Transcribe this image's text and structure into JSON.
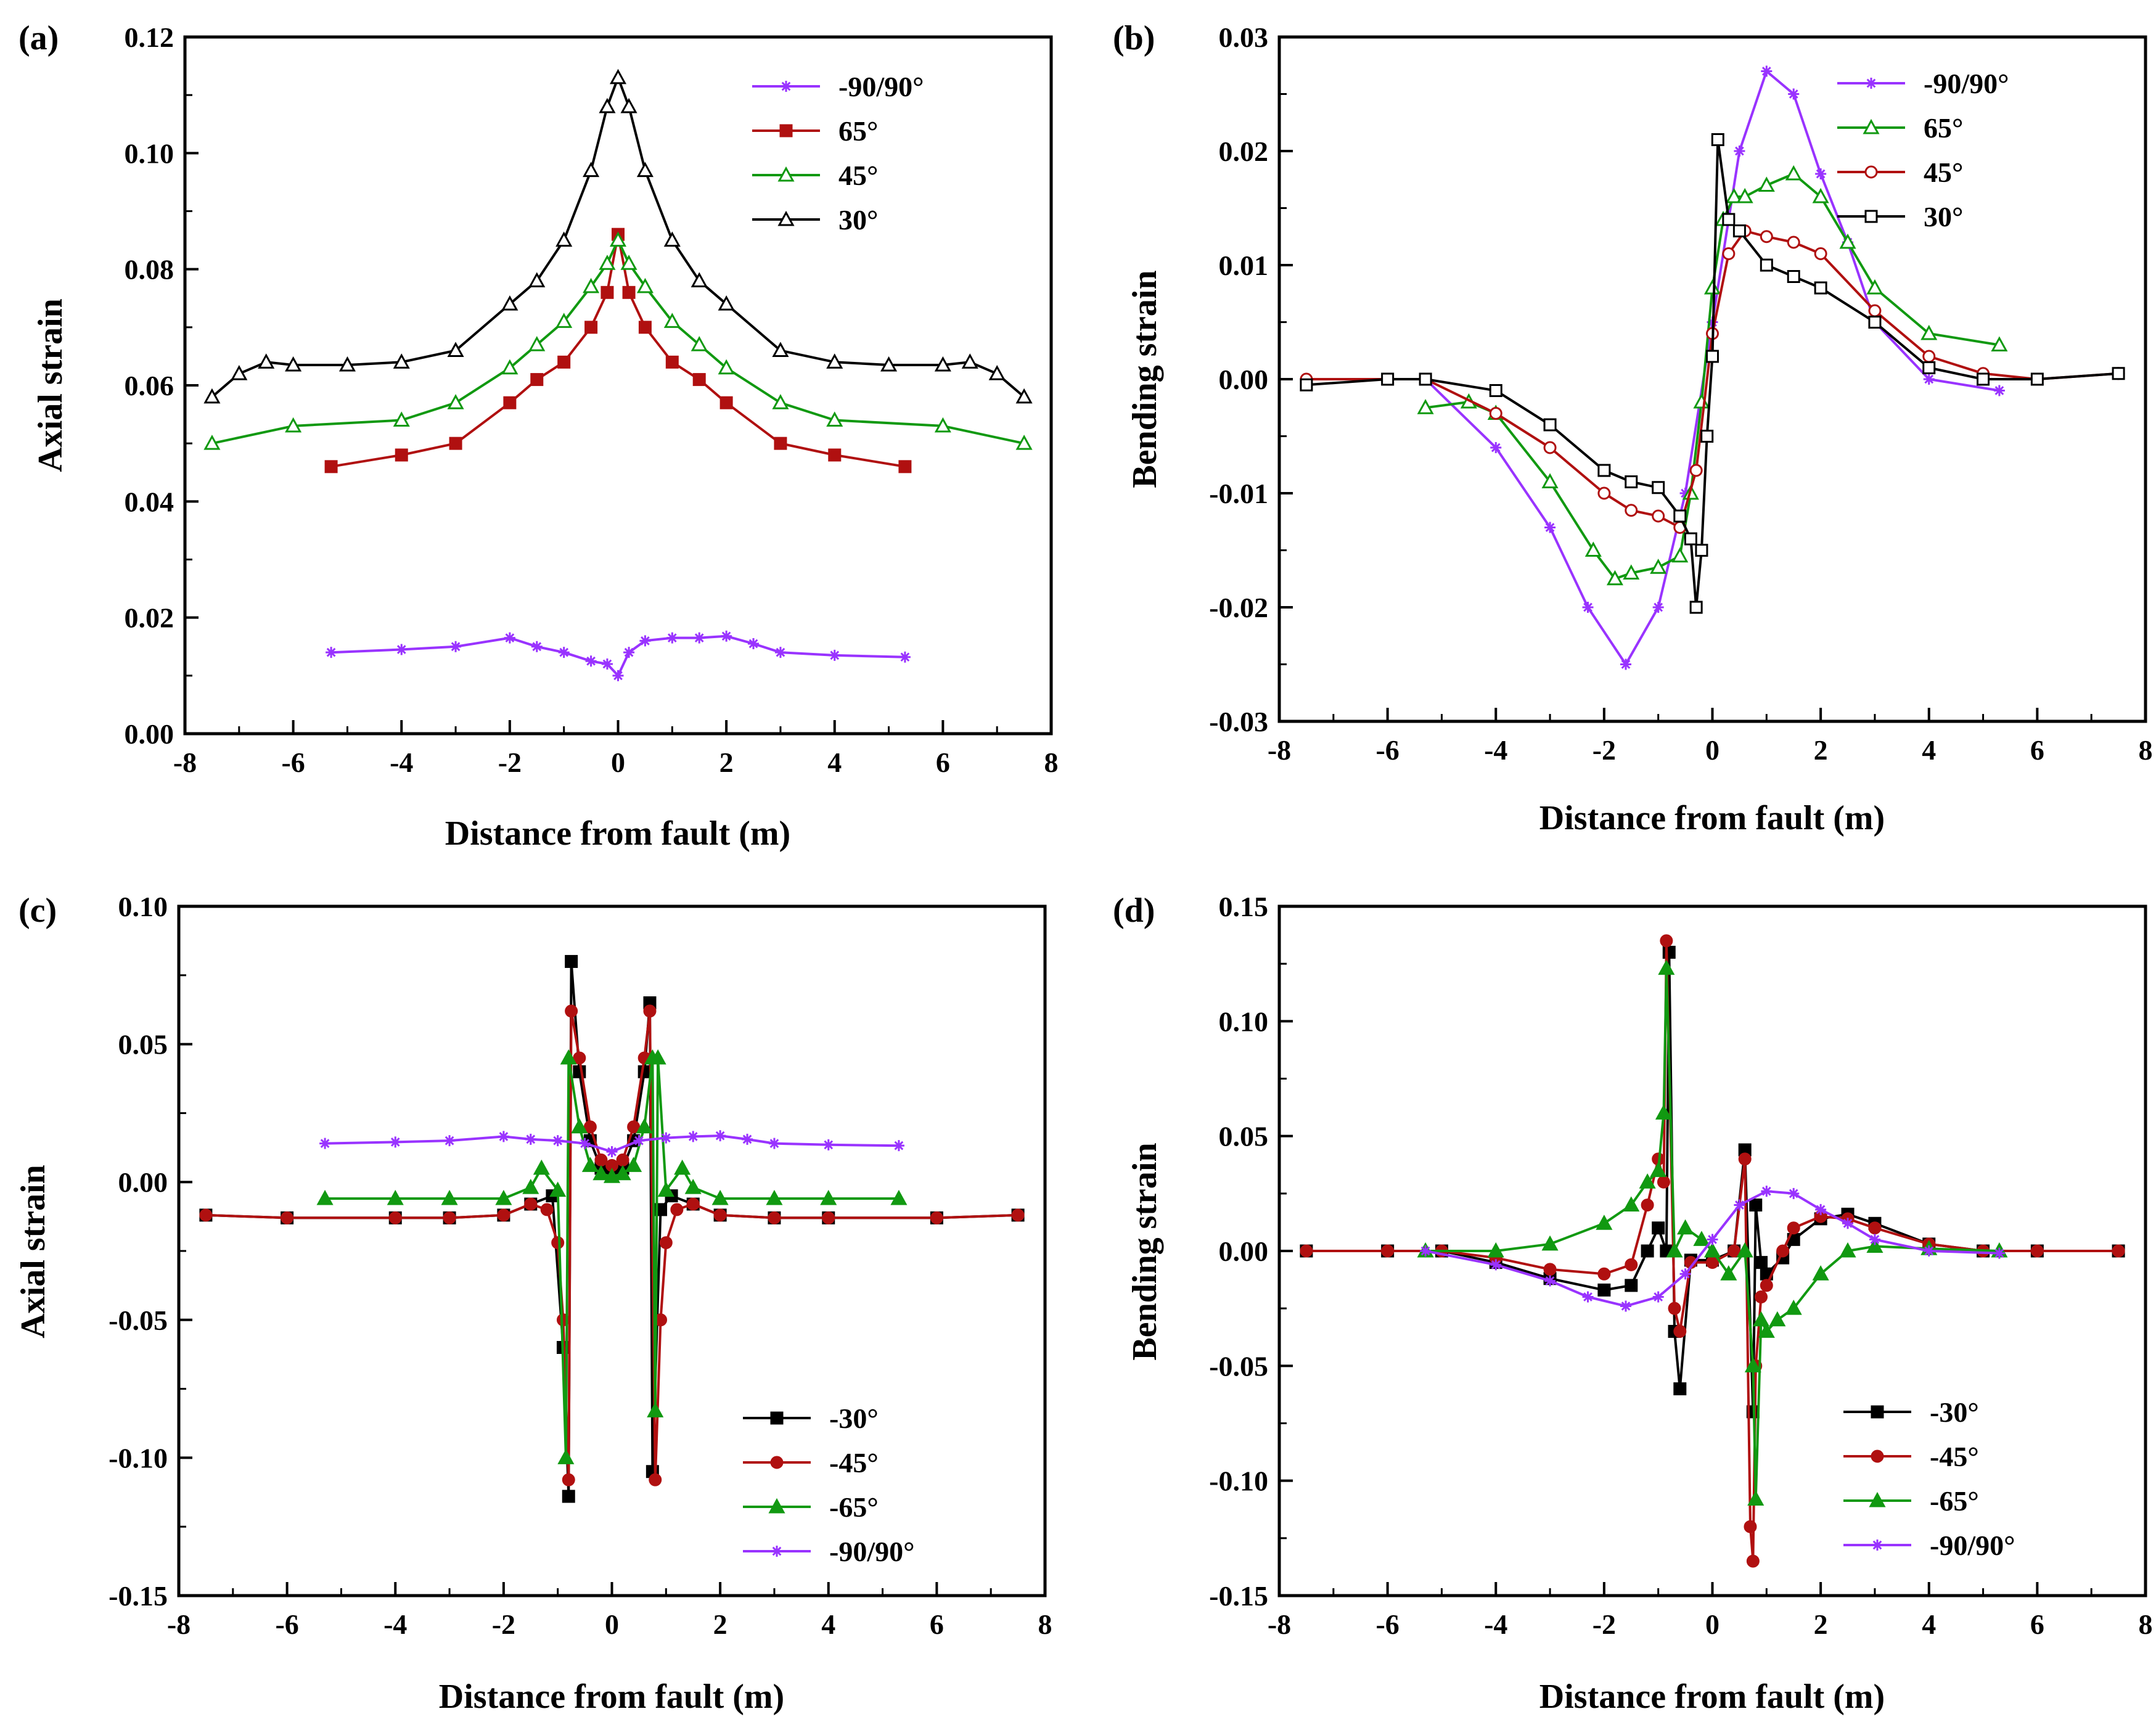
{
  "figure": {
    "panels": [
      "a",
      "b",
      "c",
      "d"
    ]
  },
  "colors": {
    "purple": "#9933ff",
    "red": "#b01010",
    "green": "#119911",
    "black": "#000000"
  },
  "chart_data": [
    {
      "id": "a",
      "panel_label": "(a)",
      "type": "line",
      "xlabel": "Distance from fault (m)",
      "ylabel": "Axial strain",
      "xlim": [
        -8,
        8
      ],
      "ylim": [
        0,
        0.12
      ],
      "xticks": [
        -8,
        -6,
        -4,
        -2,
        0,
        2,
        4,
        6,
        8
      ],
      "xtick_labels": [
        "-8",
        "-6",
        "-4",
        "-2",
        "0",
        "2",
        "4",
        "6",
        "8"
      ],
      "yticks": [
        0,
        0.02,
        0.04,
        0.06,
        0.08,
        0.1,
        0.12
      ],
      "ytick_labels": [
        "0.00",
        "0.02",
        "0.04",
        "0.06",
        "0.08",
        "0.10",
        "0.12"
      ],
      "legend_position": "top-right",
      "series": [
        {
          "name": "-90/90°",
          "color": "#9933ff",
          "marker": "star",
          "x": [
            -5.3,
            -4,
            -3,
            -2,
            -1.5,
            -1,
            -0.5,
            -0.2,
            0,
            0.2,
            0.5,
            1,
            1.5,
            2,
            2.5,
            3,
            4,
            5.3
          ],
          "y": [
            0.014,
            0.0145,
            0.015,
            0.0165,
            0.015,
            0.014,
            0.0125,
            0.012,
            0.01,
            0.014,
            0.016,
            0.0165,
            0.0165,
            0.0168,
            0.0155,
            0.014,
            0.0135,
            0.0132
          ]
        },
        {
          "name": "65°",
          "color": "#b01010",
          "marker": "square",
          "x": [
            -5.3,
            -4,
            -3,
            -2,
            -1.5,
            -1,
            -0.5,
            -0.2,
            0,
            0.2,
            0.5,
            1,
            1.5,
            2,
            3,
            4,
            5.3
          ],
          "y": [
            0.046,
            0.048,
            0.05,
            0.057,
            0.061,
            0.064,
            0.07,
            0.076,
            0.086,
            0.076,
            0.07,
            0.064,
            0.061,
            0.057,
            0.05,
            0.048,
            0.046
          ]
        },
        {
          "name": "45°",
          "color": "#119911",
          "marker": "triangle-open",
          "x": [
            -7.5,
            -6,
            -4,
            -3,
            -2,
            -1.5,
            -1,
            -0.5,
            -0.2,
            0,
            0.2,
            0.5,
            1,
            1.5,
            2,
            3,
            4,
            6,
            7.5
          ],
          "y": [
            0.05,
            0.053,
            0.054,
            0.057,
            0.063,
            0.067,
            0.071,
            0.077,
            0.081,
            0.085,
            0.081,
            0.077,
            0.071,
            0.067,
            0.063,
            0.057,
            0.054,
            0.053,
            0.05
          ]
        },
        {
          "name": "30°",
          "color": "#000000",
          "marker": "triangle-open",
          "x": [
            -7.5,
            -7,
            -6.5,
            -6,
            -5,
            -4,
            -3,
            -2,
            -1.5,
            -1,
            -0.5,
            -0.2,
            0,
            0.2,
            0.5,
            1,
            1.5,
            2,
            3,
            4,
            5,
            6,
            6.5,
            7,
            7.5
          ],
          "y": [
            0.058,
            0.062,
            0.064,
            0.0635,
            0.0635,
            0.064,
            0.066,
            0.074,
            0.078,
            0.085,
            0.097,
            0.108,
            0.113,
            0.108,
            0.097,
            0.085,
            0.078,
            0.074,
            0.066,
            0.064,
            0.0635,
            0.0635,
            0.064,
            0.062,
            0.058
          ]
        }
      ]
    },
    {
      "id": "b",
      "panel_label": "(b)",
      "type": "line",
      "xlabel": "Distance from fault (m)",
      "ylabel": "Bending strain",
      "xlim": [
        -8,
        8
      ],
      "ylim": [
        -0.03,
        0.03
      ],
      "xticks": [
        -8,
        -6,
        -4,
        -2,
        0,
        2,
        4,
        6,
        8
      ],
      "xtick_labels": [
        "-8",
        "-6",
        "-4",
        "-2",
        "0",
        "2",
        "4",
        "6",
        "8"
      ],
      "yticks": [
        -0.03,
        -0.02,
        -0.01,
        0,
        0.01,
        0.02,
        0.03
      ],
      "ytick_labels": [
        "-0.03",
        "-0.02",
        "-0.01",
        "0.00",
        "0.01",
        "0.02",
        "0.03"
      ],
      "legend_position": "top-right",
      "series": [
        {
          "name": "-90/90°",
          "color": "#9933ff",
          "marker": "star",
          "x": [
            -5.3,
            -4,
            -3,
            -2.3,
            -1.6,
            -1,
            -0.5,
            0,
            0.5,
            1,
            1.5,
            2,
            2.5,
            3,
            4,
            5.3
          ],
          "y": [
            0.0,
            -0.006,
            -0.013,
            -0.02,
            -0.025,
            -0.02,
            -0.01,
            0.005,
            0.02,
            0.027,
            0.025,
            0.018,
            0.012,
            0.005,
            0.0,
            -0.001
          ]
        },
        {
          "name": "65°",
          "color": "#119911",
          "marker": "triangle-open",
          "x": [
            -5.3,
            -4.5,
            -4,
            -3,
            -2.2,
            -1.8,
            -1.5,
            -1,
            -0.6,
            -0.4,
            -0.2,
            0,
            0.2,
            0.4,
            0.6,
            1,
            1.5,
            2,
            2.5,
            3,
            4,
            5.3
          ],
          "y": [
            -0.0025,
            -0.002,
            -0.003,
            -0.009,
            -0.015,
            -0.0175,
            -0.017,
            -0.0165,
            -0.0155,
            -0.01,
            -0.002,
            0.008,
            0.014,
            0.016,
            0.016,
            0.017,
            0.018,
            0.016,
            0.012,
            0.008,
            0.004,
            0.003
          ]
        },
        {
          "name": "45°",
          "color": "#b01010",
          "marker": "circle-open",
          "x": [
            -7.5,
            -6,
            -5.3,
            -4,
            -3,
            -2,
            -1.5,
            -1,
            -0.6,
            -0.3,
            0,
            0.3,
            0.6,
            1,
            1.5,
            2,
            3,
            4,
            5,
            6,
            7.5
          ],
          "y": [
            0.0,
            0.0,
            0.0,
            -0.003,
            -0.006,
            -0.01,
            -0.0115,
            -0.012,
            -0.013,
            -0.008,
            0.004,
            0.011,
            0.013,
            0.0125,
            0.012,
            0.011,
            0.006,
            0.002,
            0.0005,
            0.0,
            0.0005
          ]
        },
        {
          "name": "30°",
          "color": "#000000",
          "marker": "square-open",
          "x": [
            -7.5,
            -6,
            -5.3,
            -4,
            -3,
            -2,
            -1.5,
            -1,
            -0.6,
            -0.4,
            -0.3,
            -0.2,
            -0.1,
            0,
            0.1,
            0.3,
            0.5,
            1,
            1.5,
            2,
            3,
            4,
            5,
            6,
            7.5
          ],
          "y": [
            -0.0005,
            0.0,
            0.0,
            -0.001,
            -0.004,
            -0.008,
            -0.009,
            -0.0095,
            -0.012,
            -0.014,
            -0.02,
            -0.015,
            -0.005,
            0.002,
            0.021,
            0.014,
            0.013,
            0.01,
            0.009,
            0.008,
            0.005,
            0.001,
            0.0,
            0.0,
            0.0005
          ]
        }
      ]
    },
    {
      "id": "c",
      "panel_label": "(c)",
      "type": "line",
      "xlabel": "Distance from fault (m)",
      "ylabel": "Axial strain",
      "xlim": [
        -8,
        8
      ],
      "ylim": [
        -0.15,
        0.1
      ],
      "xticks": [
        -8,
        -6,
        -4,
        -2,
        0,
        2,
        4,
        6,
        8
      ],
      "xtick_labels": [
        "-8",
        "-6",
        "-4",
        "-2",
        "0",
        "2",
        "4",
        "6",
        "8"
      ],
      "yticks": [
        -0.15,
        -0.1,
        -0.05,
        0,
        0.05,
        0.1
      ],
      "ytick_labels": [
        "-0.15",
        "-0.10",
        "-0.05",
        "0.00",
        "0.05",
        "0.10"
      ],
      "legend_position": "bottom-right",
      "series": [
        {
          "name": "-30°",
          "color": "#000000",
          "marker": "square",
          "x": [
            -7.5,
            -6,
            -4,
            -3,
            -2,
            -1.5,
            -1.1,
            -0.9,
            -0.8,
            -0.75,
            -0.6,
            -0.4,
            -0.2,
            0,
            0.2,
            0.4,
            0.6,
            0.7,
            0.75,
            0.9,
            1.1,
            1.5,
            2,
            3,
            4,
            6,
            7.5
          ],
          "y": [
            -0.012,
            -0.013,
            -0.013,
            -0.013,
            -0.012,
            -0.008,
            -0.005,
            -0.06,
            -0.114,
            0.08,
            0.04,
            0.015,
            0.005,
            0.004,
            0.005,
            0.015,
            0.04,
            0.065,
            -0.105,
            -0.01,
            -0.005,
            -0.008,
            -0.012,
            -0.013,
            -0.013,
            -0.013,
            -0.012
          ]
        },
        {
          "name": "-45°",
          "color": "#b01010",
          "marker": "circle",
          "x": [
            -7.5,
            -6,
            -4,
            -3,
            -2,
            -1.5,
            -1.2,
            -1.0,
            -0.9,
            -0.8,
            -0.75,
            -0.6,
            -0.4,
            -0.2,
            0,
            0.2,
            0.4,
            0.6,
            0.7,
            0.8,
            0.9,
            1.0,
            1.2,
            1.5,
            2,
            3,
            4,
            6,
            7.5
          ],
          "y": [
            -0.012,
            -0.013,
            -0.013,
            -0.013,
            -0.012,
            -0.008,
            -0.01,
            -0.022,
            -0.05,
            -0.108,
            0.062,
            0.045,
            0.02,
            0.008,
            0.006,
            0.008,
            0.02,
            0.045,
            0.062,
            -0.108,
            -0.05,
            -0.022,
            -0.01,
            -0.008,
            -0.012,
            -0.013,
            -0.013,
            -0.013,
            -0.012
          ]
        },
        {
          "name": "-65°",
          "color": "#119911",
          "marker": "triangle",
          "x": [
            -5.3,
            -4,
            -3,
            -2,
            -1.5,
            -1.3,
            -1.0,
            -0.85,
            -0.8,
            -0.6,
            -0.4,
            -0.2,
            0,
            0.2,
            0.4,
            0.6,
            0.75,
            0.8,
            0.85,
            1.0,
            1.3,
            1.5,
            2,
            3,
            4,
            5.3
          ],
          "y": [
            -0.006,
            -0.006,
            -0.006,
            -0.006,
            -0.002,
            0.005,
            -0.003,
            -0.1,
            0.045,
            0.02,
            0.006,
            0.003,
            0.002,
            0.003,
            0.006,
            0.02,
            0.045,
            -0.083,
            0.045,
            -0.003,
            0.005,
            -0.002,
            -0.006,
            -0.006,
            -0.006,
            -0.006
          ]
        },
        {
          "name": "-90/90°",
          "color": "#9933ff",
          "marker": "star",
          "x": [
            -5.3,
            -4,
            -3,
            -2,
            -1.5,
            -1,
            -0.5,
            0,
            0.5,
            1,
            1.5,
            2,
            2.5,
            3,
            4,
            5.3
          ],
          "y": [
            0.014,
            0.0145,
            0.015,
            0.0165,
            0.0155,
            0.015,
            0.014,
            0.011,
            0.015,
            0.016,
            0.0165,
            0.0168,
            0.0155,
            0.014,
            0.0135,
            0.0132
          ]
        }
      ]
    },
    {
      "id": "d",
      "panel_label": "(d)",
      "type": "line",
      "xlabel": "Distance from fault (m)",
      "ylabel": "Bending strain",
      "xlim": [
        -8,
        8
      ],
      "ylim": [
        -0.15,
        0.15
      ],
      "xticks": [
        -8,
        -6,
        -4,
        -2,
        0,
        2,
        4,
        6,
        8
      ],
      "xtick_labels": [
        "-8",
        "-6",
        "-4",
        "-2",
        "0",
        "2",
        "4",
        "6",
        "8"
      ],
      "yticks": [
        -0.15,
        -0.1,
        -0.05,
        0,
        0.05,
        0.1,
        0.15
      ],
      "ytick_labels": [
        "-0.15",
        "-0.10",
        "-0.05",
        "0.00",
        "0.05",
        "0.10",
        "0.15"
      ],
      "legend_position": "bottom-right",
      "series": [
        {
          "name": "-30°",
          "color": "#000000",
          "marker": "square",
          "x": [
            -7.5,
            -6,
            -5,
            -4,
            -3,
            -2,
            -1.5,
            -1.2,
            -1.0,
            -0.85,
            -0.8,
            -0.7,
            -0.6,
            -0.4,
            0,
            0.4,
            0.6,
            0.75,
            0.8,
            0.9,
            1.0,
            1.3,
            1.5,
            2,
            2.5,
            3,
            4,
            5,
            6,
            7.5
          ],
          "y": [
            0.0,
            0.0,
            0.0,
            -0.005,
            -0.012,
            -0.017,
            -0.015,
            0.0,
            0.01,
            0.0,
            0.13,
            -0.035,
            -0.06,
            -0.004,
            -0.004,
            0.0,
            0.044,
            -0.07,
            0.02,
            -0.005,
            -0.01,
            -0.003,
            0.005,
            0.014,
            0.016,
            0.012,
            0.003,
            0.0,
            0.0,
            0.0
          ]
        },
        {
          "name": "-45°",
          "color": "#b01010",
          "marker": "circle",
          "x": [
            -7.5,
            -6,
            -5,
            -4,
            -3,
            -2,
            -1.5,
            -1.2,
            -1.0,
            -0.9,
            -0.85,
            -0.7,
            -0.6,
            -0.4,
            0,
            0.4,
            0.6,
            0.7,
            0.75,
            0.8,
            0.9,
            1.0,
            1.3,
            1.5,
            2,
            2.5,
            3,
            4,
            5,
            6,
            7.5
          ],
          "y": [
            0.0,
            0.0,
            0.0,
            -0.003,
            -0.008,
            -0.01,
            -0.006,
            0.02,
            0.04,
            0.03,
            0.135,
            -0.025,
            -0.035,
            -0.005,
            -0.005,
            0.0,
            0.04,
            -0.12,
            -0.135,
            -0.05,
            -0.02,
            -0.015,
            0.0,
            0.01,
            0.015,
            0.014,
            0.01,
            0.003,
            0.0,
            0.0,
            0.0
          ]
        },
        {
          "name": "-65°",
          "color": "#119911",
          "marker": "triangle",
          "x": [
            -5.3,
            -4,
            -3,
            -2,
            -1.5,
            -1.2,
            -1.0,
            -0.9,
            -0.85,
            -0.7,
            -0.5,
            -0.2,
            0,
            0.3,
            0.6,
            0.75,
            0.8,
            0.9,
            1.0,
            1.2,
            1.5,
            2,
            2.5,
            3,
            4,
            5.3
          ],
          "y": [
            0.0,
            0.0,
            0.003,
            0.012,
            0.02,
            0.03,
            0.035,
            0.06,
            0.123,
            0.0,
            0.01,
            0.005,
            0.0,
            -0.01,
            0.0,
            -0.05,
            -0.108,
            -0.03,
            -0.035,
            -0.03,
            -0.025,
            -0.01,
            0.0,
            0.002,
            0.001,
            0.0
          ]
        },
        {
          "name": "-90/90°",
          "color": "#9933ff",
          "marker": "star",
          "x": [
            -5.3,
            -4,
            -3,
            -2.3,
            -1.6,
            -1,
            -0.5,
            0,
            0.5,
            1,
            1.5,
            2,
            2.5,
            3,
            4,
            5.3
          ],
          "y": [
            0.0,
            -0.006,
            -0.013,
            -0.02,
            -0.024,
            -0.02,
            -0.01,
            0.005,
            0.02,
            0.026,
            0.025,
            0.018,
            0.012,
            0.005,
            0.0,
            -0.001
          ]
        }
      ]
    }
  ]
}
